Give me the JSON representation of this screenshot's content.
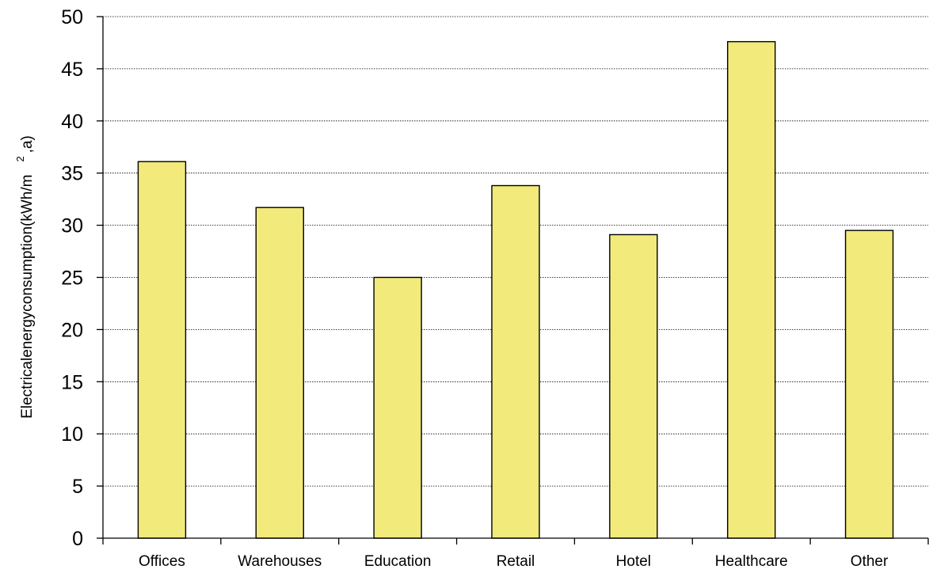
{
  "chart_data": {
    "type": "bar",
    "categories": [
      "Offices",
      "Warehouses",
      "Education",
      "Retail",
      "Hotel",
      "Healthcare",
      "Other"
    ],
    "values": [
      36.1,
      31.7,
      25.0,
      33.8,
      29.1,
      47.6,
      29.5
    ],
    "ylabel_parts": [
      "Electricalenergyconsumption(kWh/m",
      "2",
      ",a)"
    ],
    "ylim": [
      0,
      50
    ],
    "yticks": [
      "0",
      "5",
      "10",
      "15",
      "20",
      "25",
      "30",
      "35",
      "40",
      "45",
      "50"
    ],
    "grid": true,
    "legend": "none",
    "colors": {
      "bar_fill": "#f2ea7a",
      "bar_stroke": "#000000",
      "grid": "#000000"
    }
  }
}
